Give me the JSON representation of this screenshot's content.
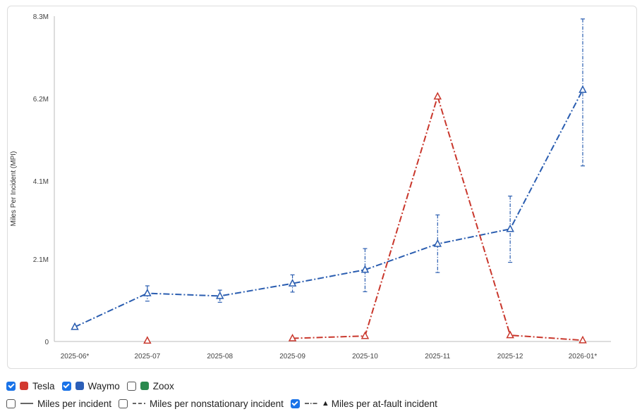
{
  "chart_data": {
    "type": "line",
    "ylabel": "Miles Per Incident (MPI)",
    "xlabel": "",
    "categories": [
      "2025-06*",
      "2025-07",
      "2025-08",
      "2025-09",
      "2025-10",
      "2025-11",
      "2025-12",
      "2026-01*"
    ],
    "ylim": [
      0,
      8300000
    ],
    "yticks": [
      {
        "value": 0,
        "label": "0"
      },
      {
        "value": 2100000,
        "label": "2.1M"
      },
      {
        "value": 4100000,
        "label": "4.1M"
      },
      {
        "value": 6200000,
        "label": "6.2M"
      },
      {
        "value": 8300000,
        "label": "8.3M"
      }
    ],
    "grid": false,
    "series": [
      {
        "name": "Waymo",
        "color": "#2a5db0",
        "values": [
          370000,
          1230000,
          1160000,
          1480000,
          1830000,
          2490000,
          2870000,
          6420000
        ],
        "error_low": [
          null,
          1030000,
          1000000,
          1260000,
          1270000,
          1760000,
          2020000,
          4480000
        ],
        "error_high": [
          null,
          1420000,
          1310000,
          1700000,
          2370000,
          3230000,
          3710000,
          8230000
        ]
      },
      {
        "name": "Tesla",
        "color": "#c9372c",
        "values": [
          null,
          20000,
          null,
          80000,
          140000,
          6250000,
          160000,
          30000
        ],
        "error_low": [],
        "error_high": []
      }
    ]
  },
  "legend": {
    "companies": [
      {
        "label": "Tesla",
        "checked": true,
        "color": "#d2392f"
      },
      {
        "label": "Waymo",
        "checked": true,
        "color": "#2c5fb8"
      },
      {
        "label": "Zoox",
        "checked": false,
        "color": "#2a8a4e"
      }
    ],
    "metrics": [
      {
        "label": "Miles per incident",
        "checked": false,
        "icon": "solid-line-icon"
      },
      {
        "label": "Miles per nonstationary incident",
        "checked": false,
        "icon": "dashed-line-icon"
      },
      {
        "label": "Miles per at-fault incident",
        "checked": true,
        "icon": "dash-dot-triangle-icon"
      }
    ]
  }
}
